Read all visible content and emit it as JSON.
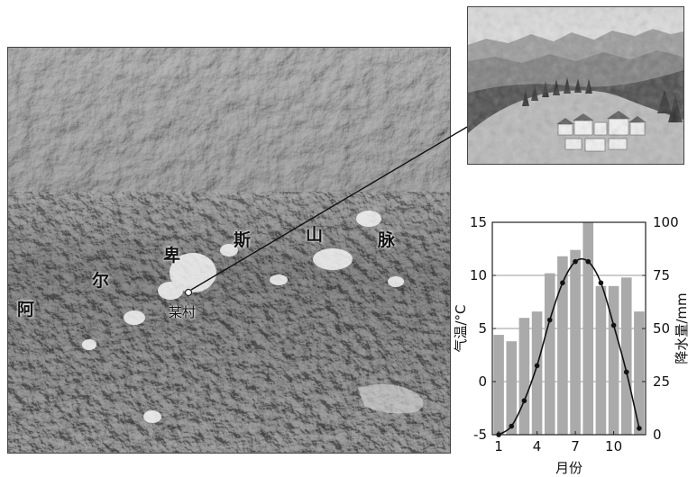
{
  "map": {
    "range_chars": [
      "阿",
      "尔",
      "卑",
      "斯",
      "山",
      "脉"
    ],
    "village_label": "某村"
  },
  "photo": {
    "subject": "alpine-village-photo"
  },
  "chart_data": {
    "type": "bar+line",
    "categories": [
      1,
      2,
      3,
      4,
      5,
      6,
      7,
      8,
      9,
      10,
      11,
      12
    ],
    "x_ticks": [
      "1",
      "4",
      "7",
      "10"
    ],
    "xlabel": "月份",
    "ylabel_left": "气温/°C",
    "ylabel_right": "降水量/mm",
    "ylim_left": [
      -5,
      15
    ],
    "ylim_right": [
      0,
      100
    ],
    "left_ticks": [
      "15",
      "10",
      "5",
      "0",
      "-5"
    ],
    "right_ticks": [
      "100",
      "75",
      "50",
      "25",
      "0"
    ],
    "grid": true,
    "series": [
      {
        "kind": "bar",
        "axis": "right",
        "values": [
          47,
          44,
          55,
          58,
          76,
          84,
          87,
          100,
          70,
          70,
          74,
          58
        ]
      },
      {
        "kind": "line",
        "axis": "left",
        "values": [
          -5,
          -4.2,
          -1.8,
          1.5,
          5.8,
          9.3,
          11.3,
          11.3,
          9.3,
          5.3,
          0.9,
          -4.4
        ]
      }
    ]
  },
  "colors": {
    "bar": "#aaaaaa",
    "line": "#111111",
    "grid": "#777777"
  }
}
